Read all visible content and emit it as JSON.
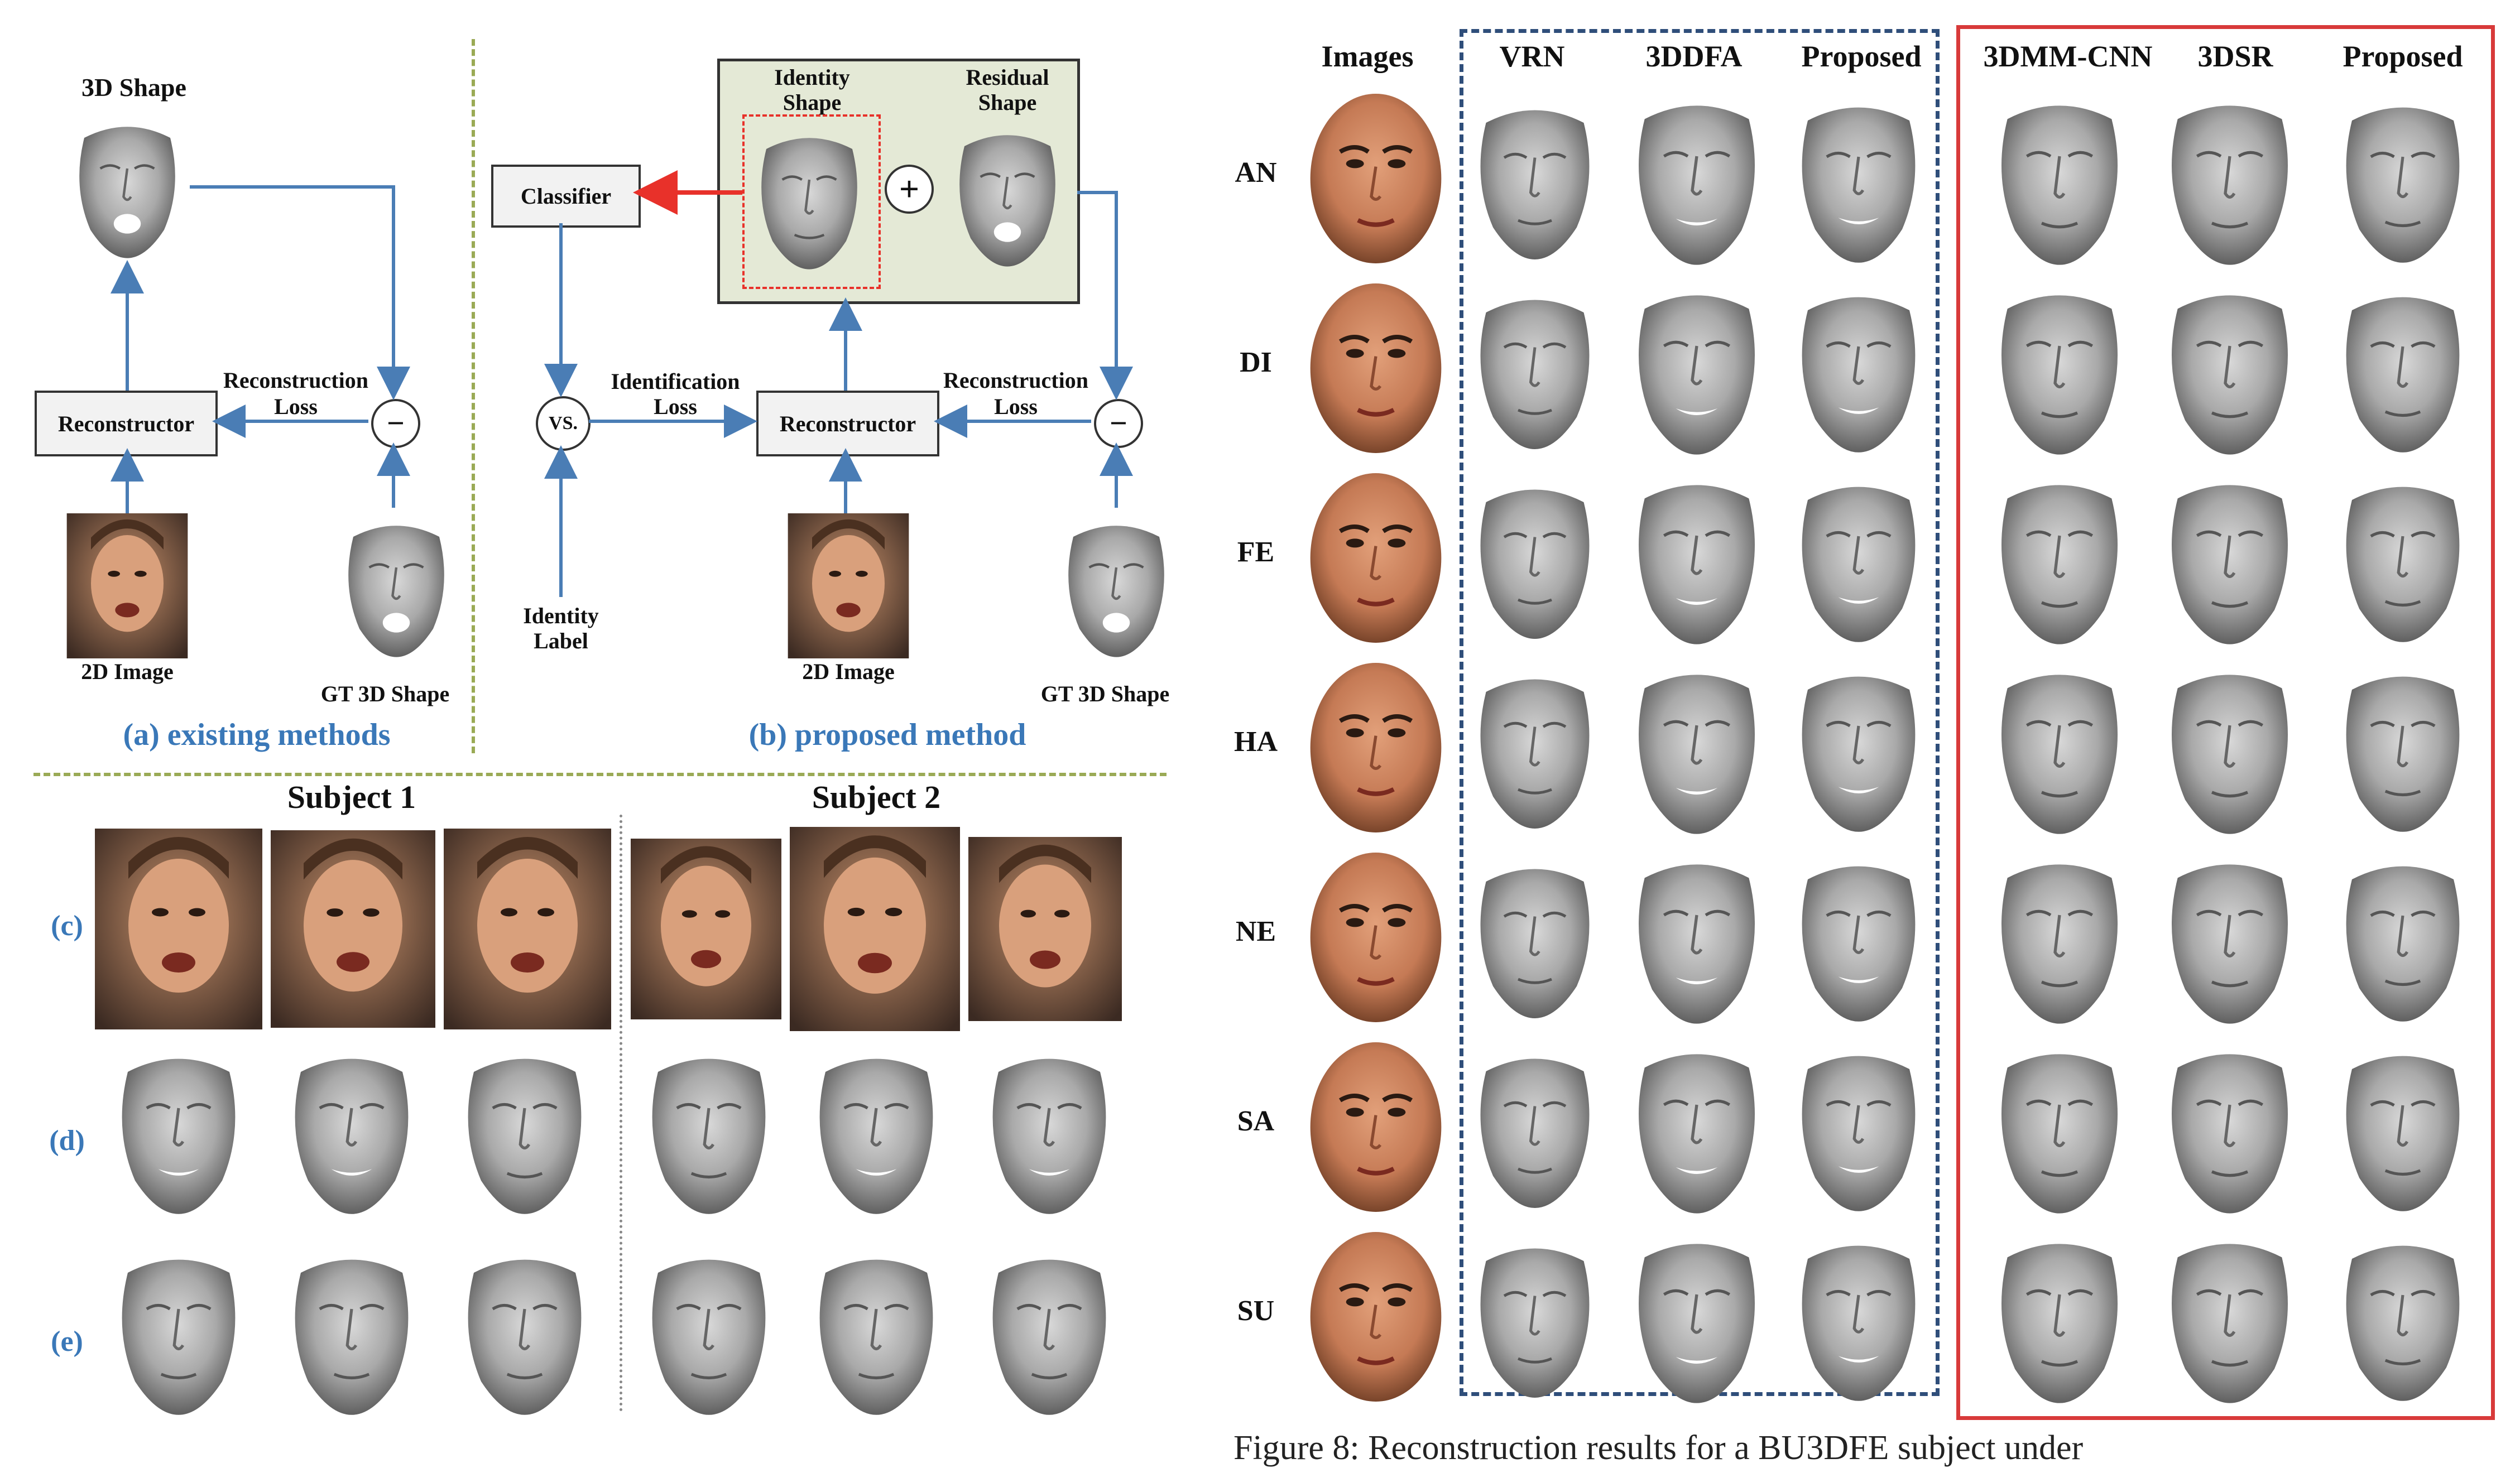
{
  "figure_left": {
    "panel_a": {
      "top_label": "3D Shape",
      "reconstructor": "Reconstructor",
      "loss_label_1": "Reconstruction",
      "loss_label_2": "Loss",
      "minus": "−",
      "image_label": "2D Image",
      "gt_label": "GT 3D Shape",
      "caption": "(a) existing methods"
    },
    "panel_b": {
      "identity_1": "Identity",
      "identity_2": "Shape",
      "residual_1": "Residual",
      "residual_2": "Shape",
      "plus": "+",
      "classifier": "Classifier",
      "vs": "VS.",
      "ident_loss_1": "Identification",
      "ident_loss_2": "Loss",
      "reconstructor": "Reconstructor",
      "loss_label_1": "Reconstruction",
      "loss_label_2": "Loss",
      "minus": "−",
      "id_label_1": "Identity",
      "id_label_2": "Label",
      "image_label": "2D Image",
      "gt_label": "GT 3D Shape",
      "caption": "(b) proposed method"
    },
    "bottom": {
      "subject1": "Subject 1",
      "subject2": "Subject 2",
      "row_labels": [
        "(c)",
        "(d)",
        "(e)"
      ]
    }
  },
  "figure_right": {
    "headers": [
      "Images",
      "VRN",
      "3DDFA",
      "Proposed",
      "3DMM-CNN",
      "3DSR",
      "Proposed"
    ],
    "rows": [
      "AN",
      "DI",
      "FE",
      "HA",
      "NE",
      "SA",
      "SU"
    ],
    "caption_fragment": "Figure 8: Reconstruction results for a BU3DFE subject under"
  },
  "colors": {
    "arrow_blue": "#4a7db5",
    "arrow_red": "#e8312a",
    "caption_blue": "#3a78b8",
    "separator_green": "#9aaa55",
    "dashed_box_blue": "#2f4e7a",
    "box_red": "#d83a3a"
  }
}
